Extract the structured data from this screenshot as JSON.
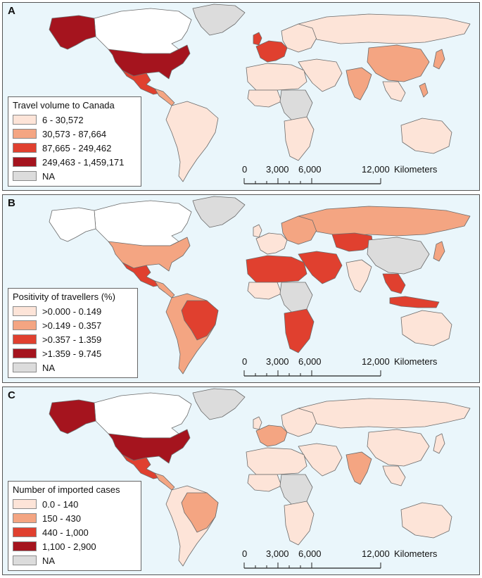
{
  "colors": {
    "ocean": "#eaf6fb",
    "land_border": "#6b6b6b",
    "class1": "#fde4d8",
    "class2": "#f4a582",
    "class3": "#e0402f",
    "class4": "#a5141e",
    "na": "#dcdcdc",
    "none": "#ffffff"
  },
  "panels": [
    {
      "letter": "A",
      "legend": {
        "title": "Travel volume to Canada",
        "items": [
          {
            "label": "6 - 30,572",
            "color": "#fde4d8"
          },
          {
            "label": "30,573 - 87,664",
            "color": "#f4a582"
          },
          {
            "label": "87,665 - 249,462",
            "color": "#e0402f"
          },
          {
            "label": "249,463 - 1,459,171",
            "color": "#a5141e"
          },
          {
            "label": "NA",
            "color": "#dcdcdc"
          }
        ]
      },
      "regions": {
        "canada": "none",
        "alaska": "class4",
        "greenland": "na",
        "usa": "class4",
        "mexico": "class3",
        "central_america": "class2",
        "south_america": "class1",
        "uk": "class3",
        "western_europe": "class3",
        "eastern_europe": "class1",
        "russia": "class1",
        "middle_east": "class1",
        "north_africa": "class1",
        "west_africa": "class1",
        "central_africa": "na",
        "southern_africa": "class1",
        "india": "class2",
        "china": "class2",
        "southeast_asia": "class1",
        "japan": "class2",
        "australia": "class1",
        "philippines": "class2"
      }
    },
    {
      "letter": "B",
      "legend": {
        "title": "Positivity of travellers (%)",
        "items": [
          {
            "label": ">0.000 - 0.149",
            "color": "#fde4d8"
          },
          {
            "label": ">0.149 - 0.357",
            "color": "#f4a582"
          },
          {
            "label": ">0.357 - 1.359",
            "color": "#e0402f"
          },
          {
            "label": ">1.359 - 9.745",
            "color": "#a5141e"
          },
          {
            "label": "NA",
            "color": "#dcdcdc"
          }
        ]
      },
      "regions": {
        "canada": "none",
        "alaska": "none",
        "greenland": "na",
        "usa": "class2",
        "mexico": "class3",
        "central_america": "class2",
        "south_america": "class2",
        "brazil": "class3",
        "uk": "class1",
        "western_europe": "class1",
        "eastern_europe": "class2",
        "russia": "class2",
        "kazakhstan": "class3",
        "middle_east": "class3",
        "north_africa": "class3",
        "west_africa": "class1",
        "central_africa": "na",
        "southern_africa": "class3",
        "india": "class1",
        "china": "na",
        "southeast_asia": "class3",
        "japan": "class2",
        "australia": "class1",
        "indonesia": "class3"
      }
    },
    {
      "letter": "C",
      "legend": {
        "title": "Number of imported cases",
        "items": [
          {
            "label": "0.0 - 140",
            "color": "#fde4d8"
          },
          {
            "label": "150 - 430",
            "color": "#f4a582"
          },
          {
            "label": "440 - 1,000",
            "color": "#e0402f"
          },
          {
            "label": "1,100 - 2,900",
            "color": "#a5141e"
          },
          {
            "label": "NA",
            "color": "#dcdcdc"
          }
        ]
      },
      "regions": {
        "canada": "none",
        "alaska": "class4",
        "greenland": "na",
        "usa": "class4",
        "mexico": "class3",
        "central_america": "class2",
        "south_america": "class1",
        "brazil": "class2",
        "uk": "class1",
        "western_europe": "class2",
        "eastern_europe": "class1",
        "russia": "class1",
        "middle_east": "class1",
        "north_africa": "class1",
        "west_africa": "class1",
        "central_africa": "na",
        "southern_africa": "class1",
        "india": "class2",
        "china": "class1",
        "southeast_asia": "class1",
        "japan": "class1",
        "australia": "class1"
      }
    }
  ],
  "scalebar": {
    "ticks": [
      "0",
      "3,000",
      "6,000",
      "12,000"
    ],
    "unit": "Kilometers"
  }
}
